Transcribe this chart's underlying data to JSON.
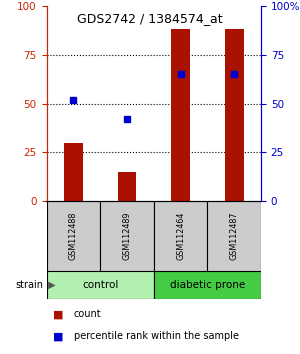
{
  "title": "GDS2742 / 1384574_at",
  "samples": [
    "GSM112488",
    "GSM112489",
    "GSM112464",
    "GSM112487"
  ],
  "counts": [
    30,
    15,
    88,
    88
  ],
  "percentiles": [
    52,
    42,
    65,
    65
  ],
  "groups": [
    {
      "label": "control",
      "indices": [
        0,
        1
      ],
      "color": "#b2f0b2"
    },
    {
      "label": "diabetic prone",
      "indices": [
        2,
        3
      ],
      "color": "#44cc44"
    }
  ],
  "bar_color": "#aa1100",
  "dot_color": "#0000cc",
  "ylim": [
    0,
    100
  ],
  "yticks": [
    0,
    25,
    50,
    75,
    100
  ],
  "bg_color": "#ffffff",
  "bar_width": 0.35,
  "left_tick_color": "#cc2200",
  "right_tick_color": "#0000cc",
  "sample_box_color": "#cccccc",
  "legend_count_label": "count",
  "legend_pct_label": "percentile rank within the sample",
  "strain_label": "strain"
}
